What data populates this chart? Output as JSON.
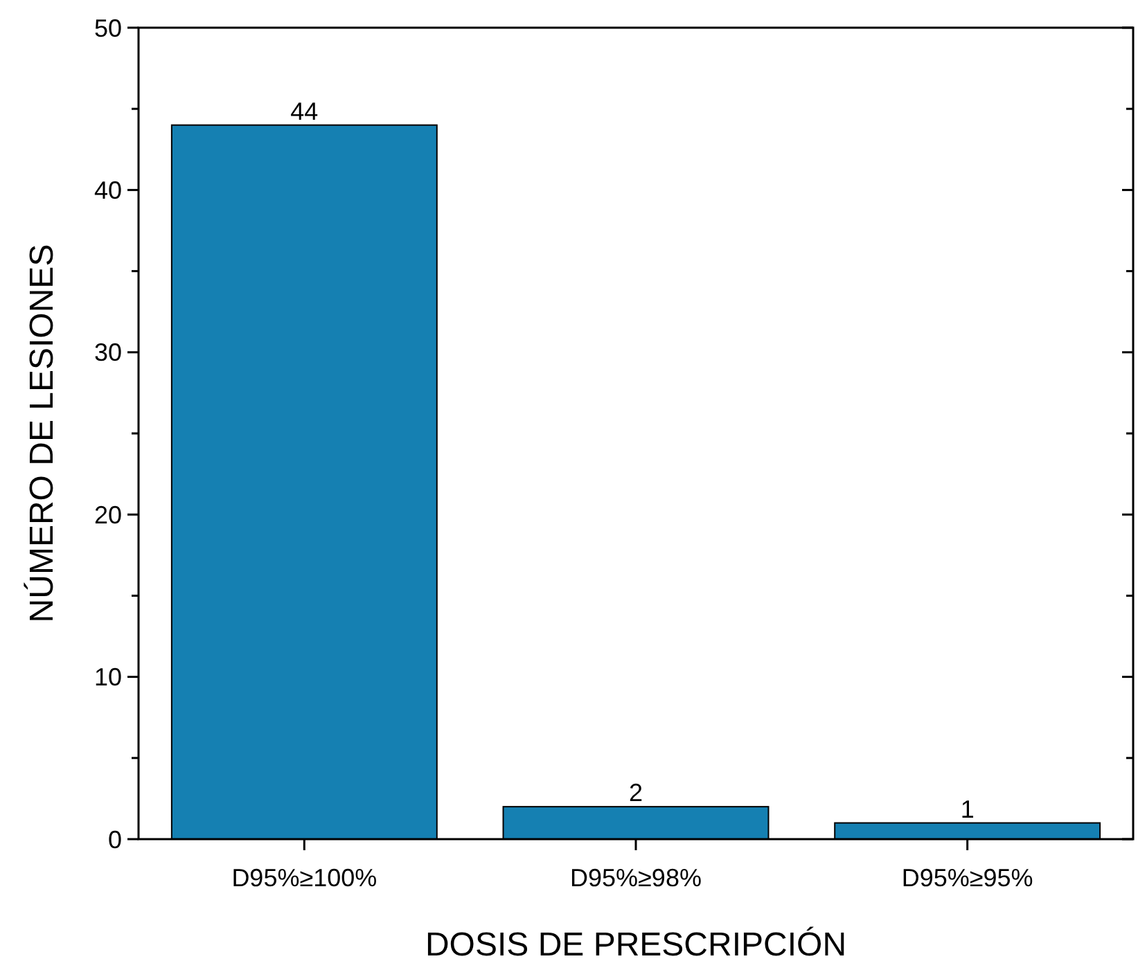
{
  "chart_data": {
    "type": "bar",
    "xlabel": "DOSIS DE PRESCRIPCIÓN",
    "ylabel": "NÚMERO DE LESIONES",
    "categories": [
      "D95%≥100%",
      "D95%≥98%",
      "D95%≥95%"
    ],
    "values": [
      44,
      2,
      1
    ],
    "color": "#1580b2",
    "ylim": [
      0,
      50
    ],
    "yticks": [
      0,
      {
        "value": 5,
        "label": null
      },
      10,
      {
        "value": 15,
        "label": null
      },
      20,
      {
        "value": 25,
        "label": null
      },
      30,
      {
        "value": 35,
        "label": null
      },
      40,
      {
        "value": 45,
        "label": null
      },
      50
    ],
    "data_labels": true,
    "grid": false
  }
}
